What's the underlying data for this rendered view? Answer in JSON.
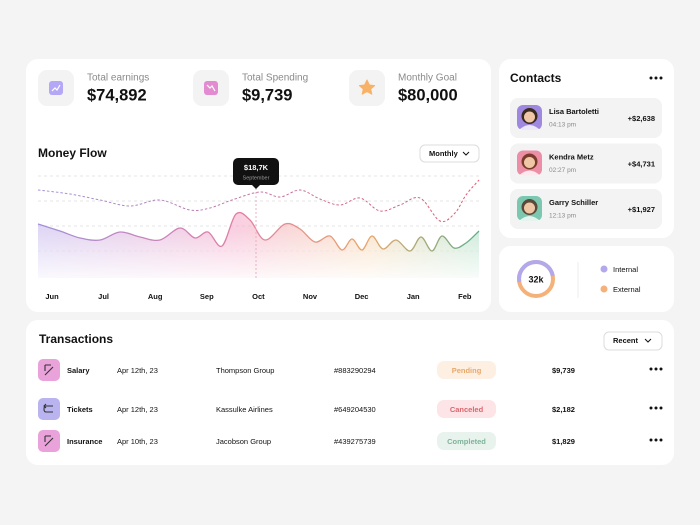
{
  "stats": [
    {
      "label": "Total earnings",
      "value": "$74,892"
    },
    {
      "label": "Total Spending",
      "value": "$9,739"
    },
    {
      "label": "Monthly Goal",
      "value": "$80,000"
    }
  ],
  "money_flow": {
    "title": "Money Flow",
    "filter": "Monthly",
    "tooltip": {
      "value": "$18,7K",
      "label": "September"
    },
    "months": [
      "Jun",
      "Jul",
      "Aug",
      "Sep",
      "Oct",
      "Nov",
      "Dec",
      "Jan",
      "Feb"
    ]
  },
  "contacts": {
    "title": "Contacts",
    "items": [
      {
        "name": "Lisa Bartoletti",
        "time": "04:13 pm",
        "amount": "+$2,638"
      },
      {
        "name": "Kendra Metz",
        "time": "02:27 pm",
        "amount": "+$4,731"
      },
      {
        "name": "Garry Schiller",
        "time": "12:13 pm",
        "amount": "+$1,927"
      }
    ]
  },
  "donut": {
    "center": "32k",
    "legend": [
      "Internal",
      "External"
    ]
  },
  "transactions": {
    "title": "Transactions",
    "filter": "Recent",
    "rows": [
      {
        "name": "Salary",
        "date": "Apr 12th, 23",
        "company": "Thompson Group",
        "id": "#883290294",
        "status": "Pending",
        "amount": "$9,739"
      },
      {
        "name": "Tickets",
        "date": "Apr 12th, 23",
        "company": "Kassulke Airlines",
        "id": "#649204530",
        "status": "Canceled",
        "amount": "$2,182"
      },
      {
        "name": "Insurance",
        "date": "Apr 10th, 23",
        "company": "Jacobson Group",
        "id": "#439275739",
        "status": "Completed",
        "amount": "$1,829"
      }
    ]
  }
}
